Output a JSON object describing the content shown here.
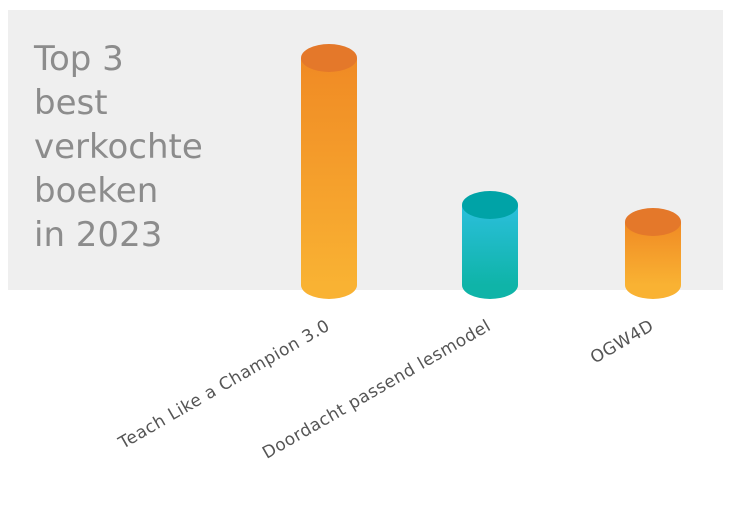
{
  "chart_data": {
    "type": "cylinder",
    "title": [
      "Top 3",
      "best",
      "verkochte",
      "boeken",
      "in 2023"
    ],
    "categories": [
      "Teach Like a Champion 3.0",
      "Doordacht passend lesmodel",
      "OGW4D"
    ],
    "values": [
      227,
      80,
      63
    ],
    "colors": [
      {
        "top": "#f08a24",
        "bottom": "#f9b233",
        "cap": "#e4782a"
      },
      {
        "top": "#2bbfdc",
        "bottom": "#0fb4a8",
        "cap": "#00a3a7"
      },
      {
        "top": "#f08a24",
        "bottom": "#f9b233",
        "cap": "#e4782a"
      }
    ]
  }
}
